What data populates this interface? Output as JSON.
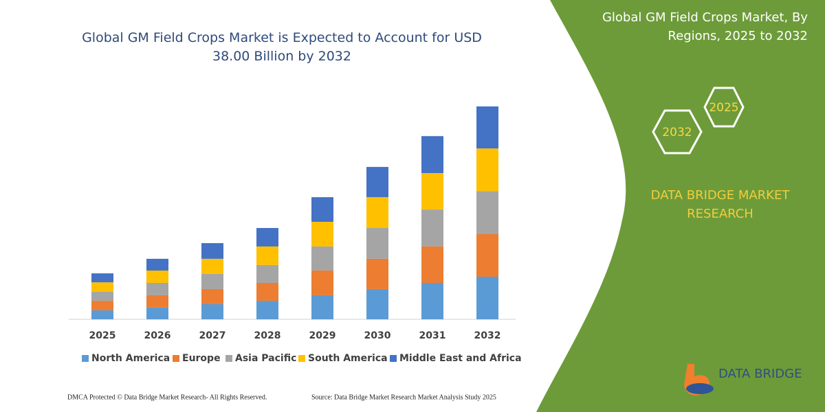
{
  "chart_data": {
    "type": "stacked_bar",
    "title": "Global GM Field Crops Market is Expected to Account for USD 38.00 Billion by 2032",
    "categories": [
      "2025",
      "2026",
      "2027",
      "2028",
      "2029",
      "2030",
      "2031",
      "2032"
    ],
    "series": [
      {
        "name": "North America",
        "color": "#5b9bd5",
        "values": [
          1.6,
          2.1,
          2.7,
          3.3,
          4.3,
          5.4,
          6.5,
          7.6
        ]
      },
      {
        "name": "Europe",
        "color": "#ed7d31",
        "values": [
          1.7,
          2.2,
          2.7,
          3.2,
          4.4,
          5.4,
          6.5,
          7.6
        ]
      },
      {
        "name": "Asia Pacific",
        "color": "#a5a5a5",
        "values": [
          1.6,
          2.2,
          2.7,
          3.2,
          4.3,
          5.5,
          6.6,
          7.7
        ]
      },
      {
        "name": "South America",
        "color": "#ffc000",
        "values": [
          1.7,
          2.2,
          2.7,
          3.3,
          4.4,
          5.5,
          6.5,
          7.6
        ]
      },
      {
        "name": "Middle East and Africa",
        "color": "#4472c4",
        "values": [
          1.6,
          2.1,
          2.8,
          3.3,
          4.4,
          5.4,
          6.6,
          7.5
        ]
      }
    ],
    "legend": "bottom"
  },
  "side_panel": {
    "title": "Global GM Field Crops Market, By Regions, 2025 to 2032",
    "badges": [
      "2025",
      "2032"
    ],
    "brand": "DATA BRIDGE MARKET RESEARCH",
    "logo": "DATA BRIDGE"
  },
  "footer": {
    "rights": "DMCA Protected © Data Bridge Market Research- All Rights Reserved.",
    "source": "Source: Data Bridge Market Research Market Analysis Study 2025"
  }
}
